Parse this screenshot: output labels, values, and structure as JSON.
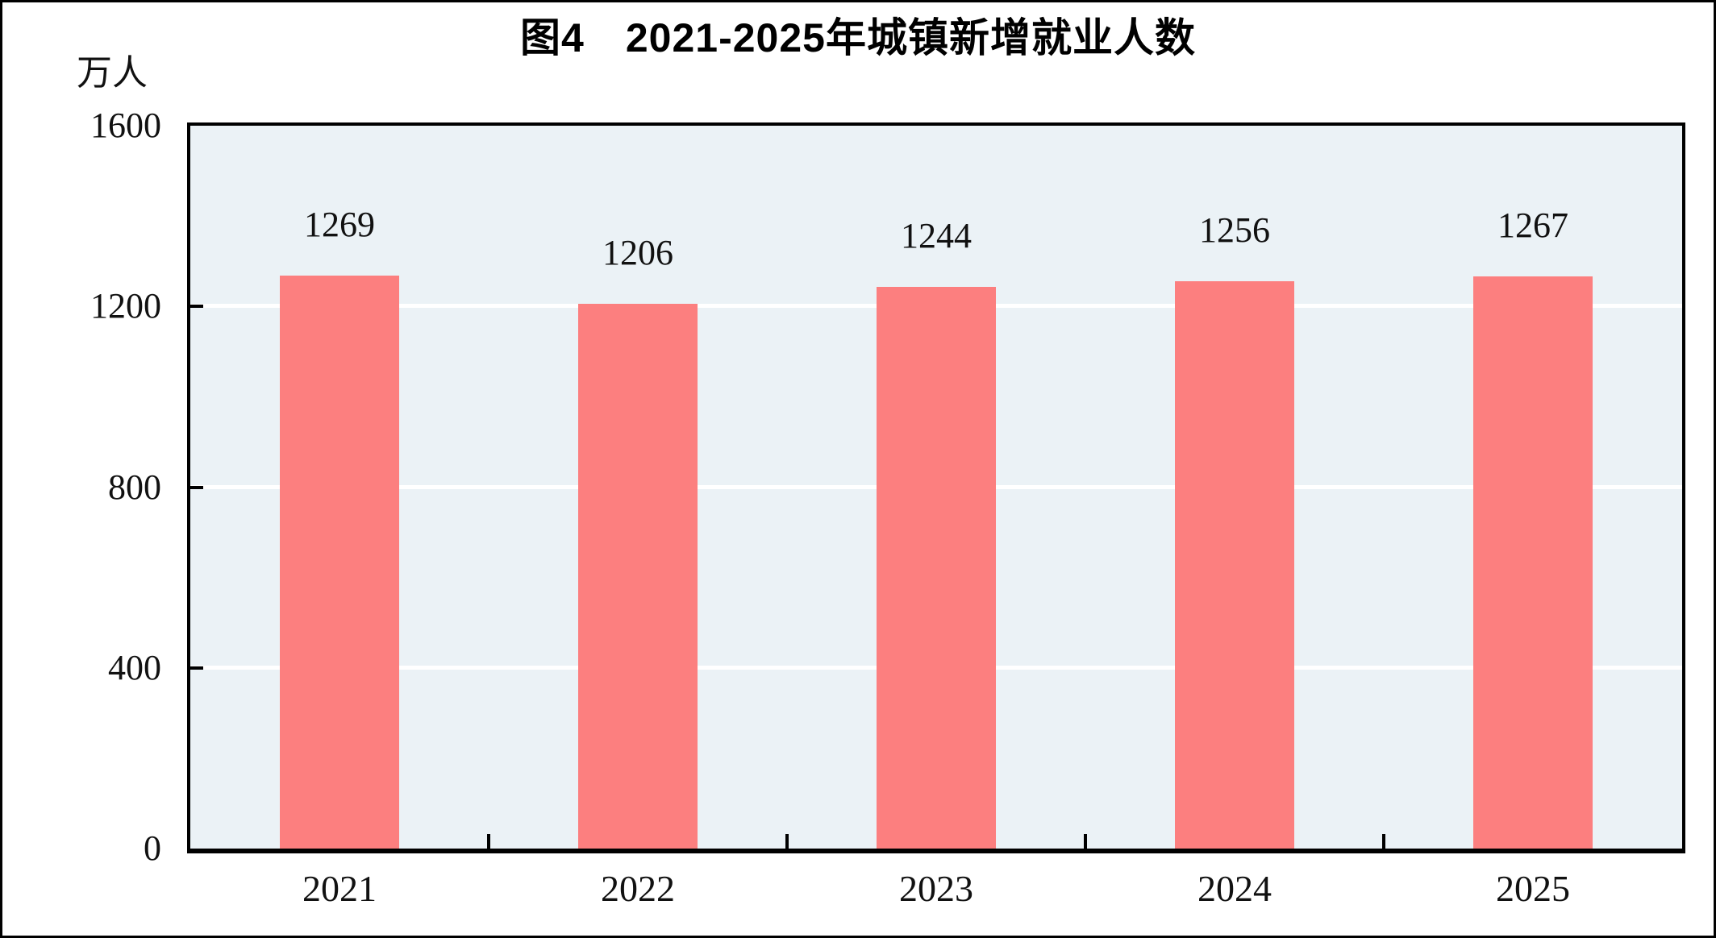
{
  "figure": {
    "background": "#ffffff",
    "frame_border_color": "#000000"
  },
  "chart_data": {
    "type": "bar",
    "title": "图4　2021-2025年城镇新增就业人数",
    "unit_label": "万人",
    "categories": [
      "2021",
      "2022",
      "2023",
      "2024",
      "2025"
    ],
    "values": [
      1269,
      1206,
      1244,
      1256,
      1267
    ],
    "value_labels_shown": true,
    "xlabel": "",
    "ylabel": "万人",
    "ylim": [
      0,
      1600
    ],
    "yticks": [
      0,
      400,
      800,
      1200,
      1600
    ],
    "grid": "horizontal white gridlines at 400/800/1200",
    "legend": "none",
    "bar_color": "#FC7F7F",
    "plot_bg_color": "#EBF2F6",
    "grid_color": "#FFFFFF",
    "axis_color": "#000000",
    "text_color": "#111111"
  }
}
